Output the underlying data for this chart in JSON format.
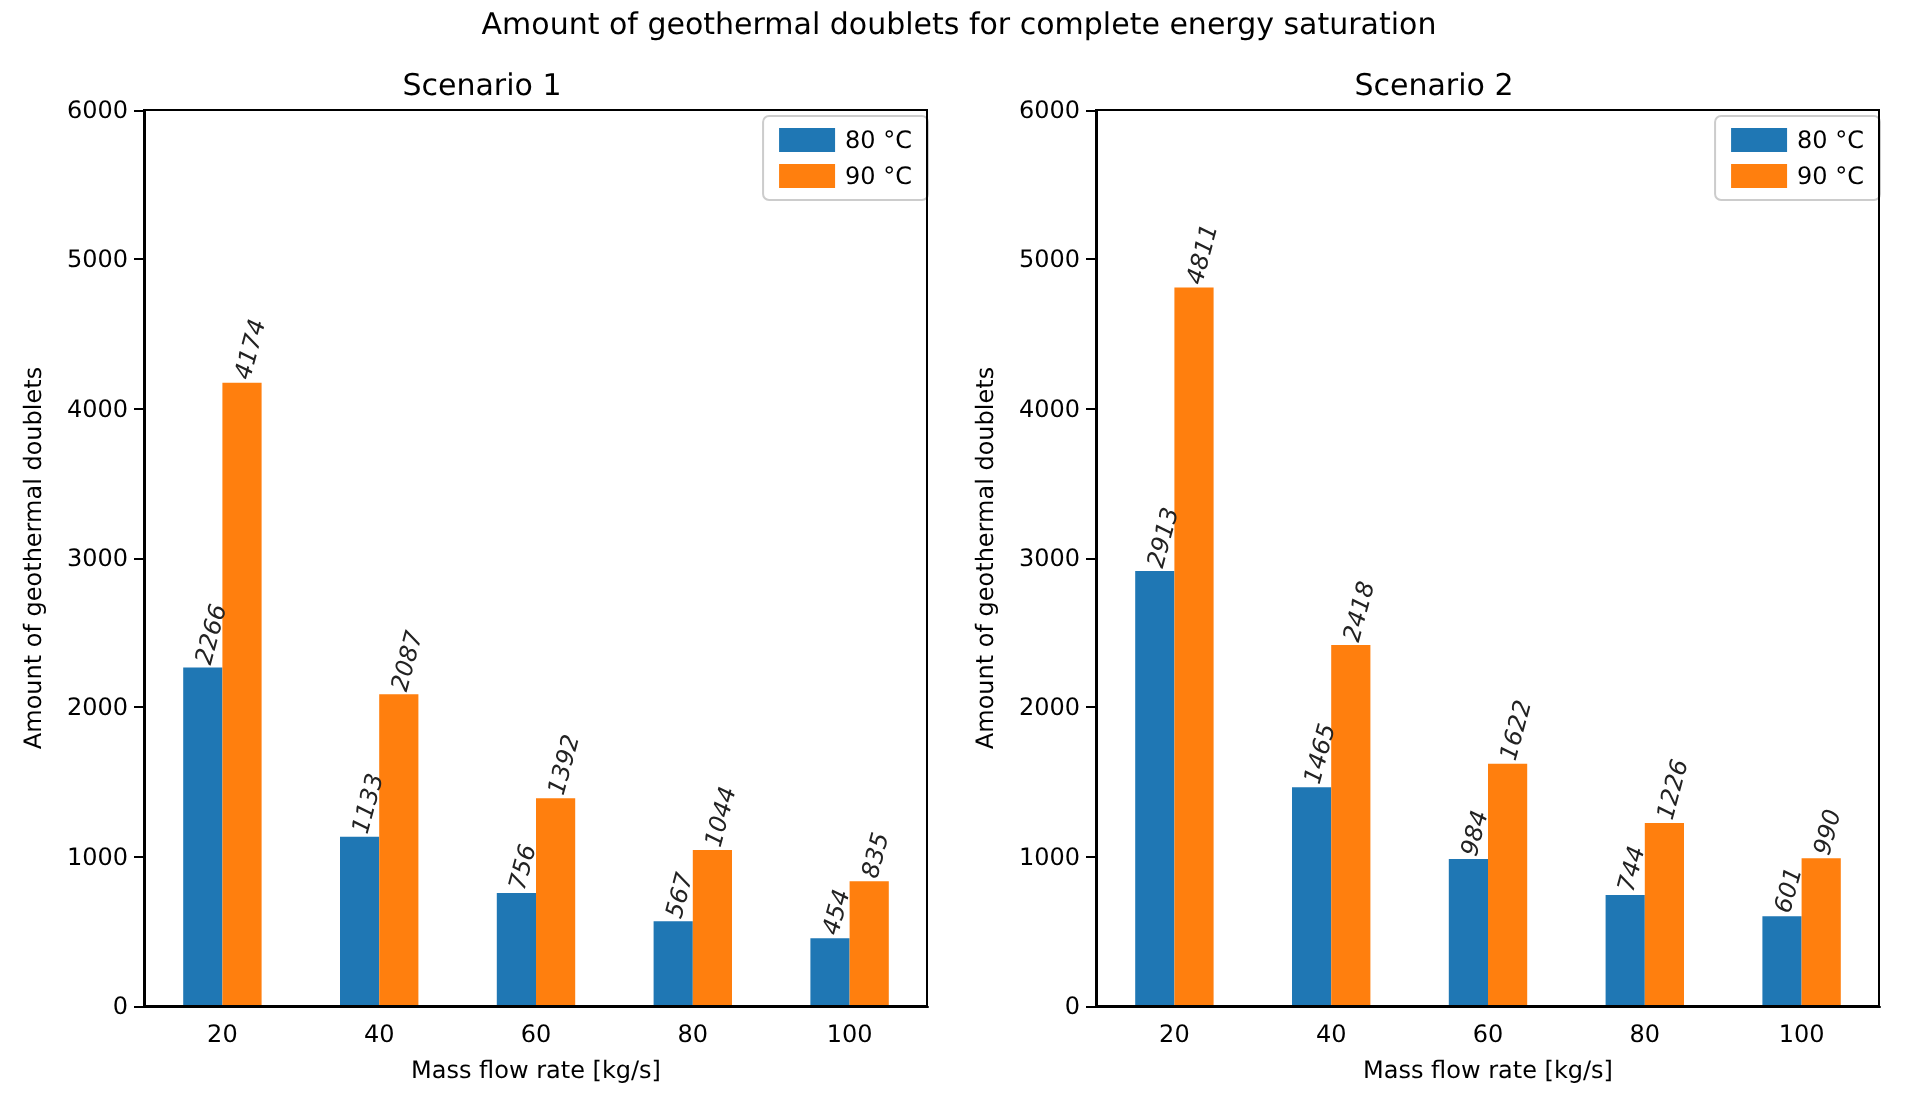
{
  "chart_data": [
    {
      "type": "bar",
      "title": "Scenario 1",
      "annotations": [
        "Amount of geothermal doublets for complete energy saturation"
      ],
      "xlabel": "Mass flow rate [kg/s]",
      "ylabel": "Amount of geothermal doublets",
      "categories": [
        "20",
        "40",
        "60",
        "80",
        "100"
      ],
      "series": [
        {
          "name": "80 °C",
          "color": "#1f77b4",
          "values": [
            2266,
            1133,
            756,
            567,
            454
          ]
        },
        {
          "name": "90 °C",
          "color": "#ff7f0e",
          "values": [
            4174,
            2087,
            1392,
            1044,
            835
          ]
        }
      ],
      "ylim": [
        0,
        6000
      ],
      "yticks": [
        0,
        1000,
        2000,
        3000,
        4000,
        5000,
        6000
      ],
      "data_labels": true,
      "legend": "top right",
      "grid": false
    },
    {
      "type": "bar",
      "title": "Scenario 2",
      "xlabel": "Mass flow rate [kg/s]",
      "ylabel": "Amount of geothermal doublets",
      "categories": [
        "20",
        "40",
        "60",
        "80",
        "100"
      ],
      "series": [
        {
          "name": "80 °C",
          "color": "#1f77b4",
          "values": [
            2913,
            1465,
            984,
            744,
            601
          ]
        },
        {
          "name": "90 °C",
          "color": "#ff7f0e",
          "values": [
            4811,
            2418,
            1622,
            1226,
            990
          ]
        }
      ],
      "ylim": [
        0,
        6000
      ],
      "yticks": [
        0,
        1000,
        2000,
        3000,
        4000,
        5000,
        6000
      ],
      "data_labels": true,
      "legend": "top right",
      "grid": false
    }
  ]
}
